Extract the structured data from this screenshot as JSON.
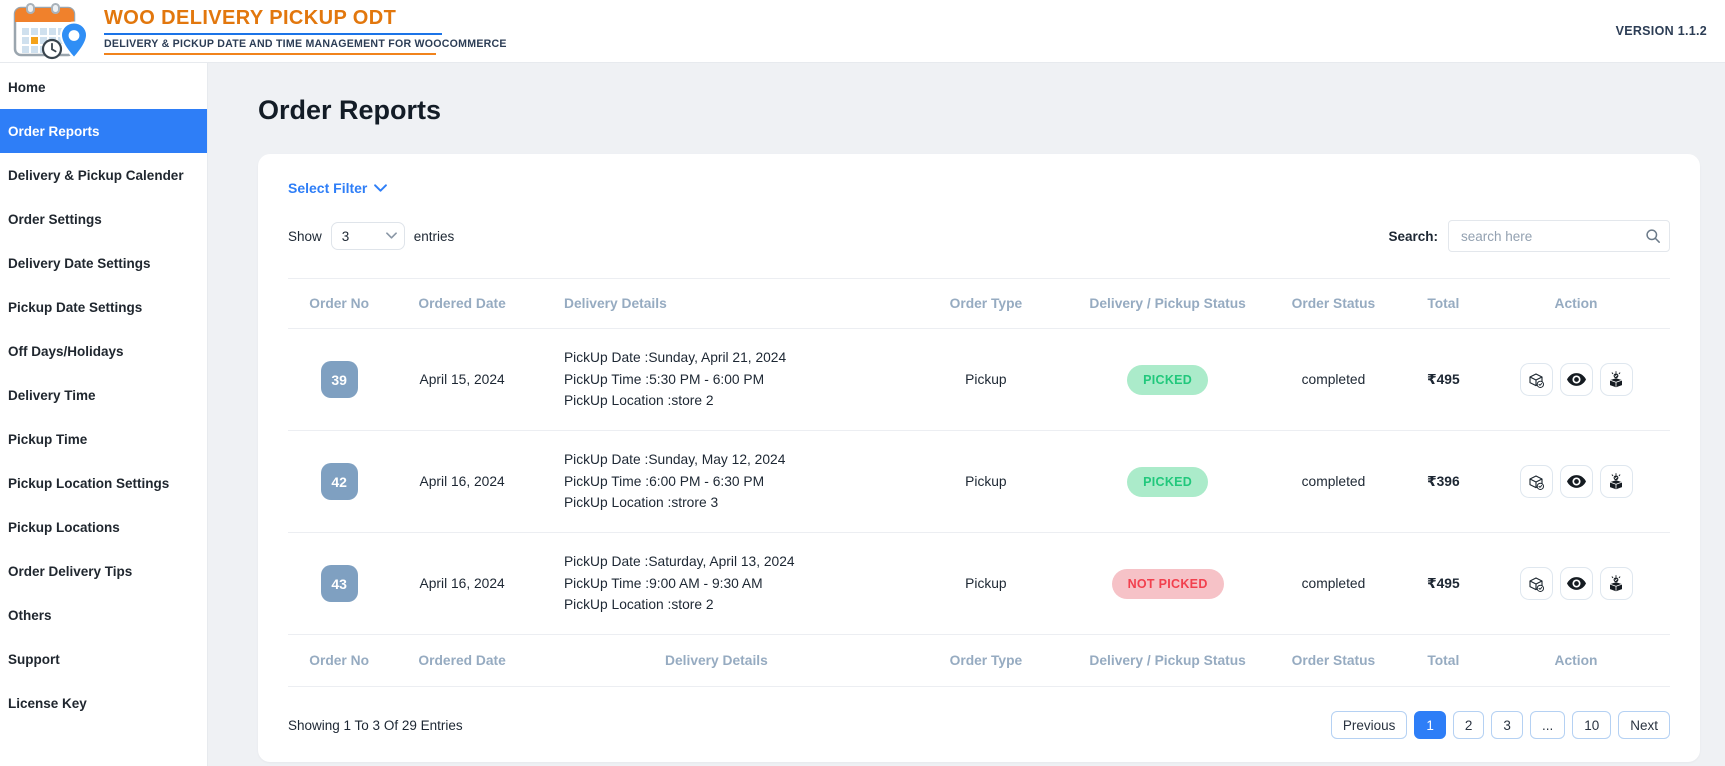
{
  "header": {
    "title": "WOO DELIVERY PICKUP ODT",
    "subtitle": "DELIVERY & PICKUP DATE AND TIME MANAGEMENT FOR WOOCOMMERCE",
    "version": "VERSION 1.1.2",
    "logo": "calendar-with-location-pin-and-clock"
  },
  "sidebar": {
    "items": [
      {
        "label": "Home",
        "active": false
      },
      {
        "label": "Order Reports",
        "active": true
      },
      {
        "label": "Delivery & Pickup Calender",
        "active": false
      },
      {
        "label": "Order Settings",
        "active": false
      },
      {
        "label": "Delivery Date Settings",
        "active": false
      },
      {
        "label": "Pickup Date Settings",
        "active": false
      },
      {
        "label": "Off Days/Holidays",
        "active": false
      },
      {
        "label": "Delivery Time",
        "active": false
      },
      {
        "label": "Pickup Time",
        "active": false
      },
      {
        "label": "Pickup Location Settings",
        "active": false
      },
      {
        "label": "Pickup Locations",
        "active": false
      },
      {
        "label": "Order Delivery Tips",
        "active": false
      },
      {
        "label": "Others",
        "active": false
      },
      {
        "label": "Support",
        "active": false
      },
      {
        "label": "License Key",
        "active": false
      }
    ]
  },
  "page": {
    "title": "Order Reports"
  },
  "toolbar": {
    "filter_label": "Select Filter",
    "show_label": "Show",
    "page_size": "3",
    "entries_label": "entries",
    "search_label": "Search:",
    "search_placeholder": "search here"
  },
  "table": {
    "headers": [
      "Order No",
      "Ordered Date",
      "Delivery Details",
      "Order Type",
      "Delivery / Pickup Status",
      "Order Status",
      "Total",
      "Action"
    ],
    "action_icons": [
      "package-check-icon",
      "eye-icon",
      "unbox-check-icon"
    ],
    "rows": [
      {
        "order_no": "39",
        "ordered_date": "April 15, 2024",
        "details": [
          "PickUp Date :Sunday, April 21, 2024",
          "PickUp Time :5:30 PM - 6:00 PM",
          "PickUp Location :store 2"
        ],
        "order_type": "Pickup",
        "status": "PICKED",
        "status_type": "picked",
        "order_status": "completed",
        "total": "₹495"
      },
      {
        "order_no": "42",
        "ordered_date": "April 16, 2024",
        "details": [
          "PickUp Date :Sunday, May 12, 2024",
          "PickUp Time :6:00 PM - 6:30 PM",
          "PickUp Location :strore 3"
        ],
        "order_type": "Pickup",
        "status": "PICKED",
        "status_type": "picked",
        "order_status": "completed",
        "total": "₹396"
      },
      {
        "order_no": "43",
        "ordered_date": "April 16, 2024",
        "details": [
          "PickUp Date :Saturday, April 13, 2024",
          "PickUp Time :9:00 AM - 9:30 AM",
          "PickUp Location :store 2"
        ],
        "order_type": "Pickup",
        "status": "NOT PICKED",
        "status_type": "not-picked",
        "order_status": "completed",
        "total": "₹495"
      }
    ]
  },
  "footer": {
    "showing_text": "Showing 1 To 3 Of 29 Entries",
    "pagination": [
      {
        "label": "Previous",
        "active": false
      },
      {
        "label": "1",
        "active": true
      },
      {
        "label": "2",
        "active": false
      },
      {
        "label": "3",
        "active": false
      },
      {
        "label": "...",
        "active": false
      },
      {
        "label": "10",
        "active": false
      },
      {
        "label": "Next",
        "active": false
      }
    ]
  },
  "colors": {
    "accent_blue": "#2e7ef7",
    "brand_orange": "#e2770d",
    "brand_navy": "#2c3d55",
    "table_header_text": "#96abc1",
    "picked_bg": "#abebca",
    "picked_text": "#21c87c",
    "not_picked_bg": "#f6c2c7",
    "not_picked_text": "#f2404e",
    "order_badge_bg": "#7fa0c1"
  }
}
